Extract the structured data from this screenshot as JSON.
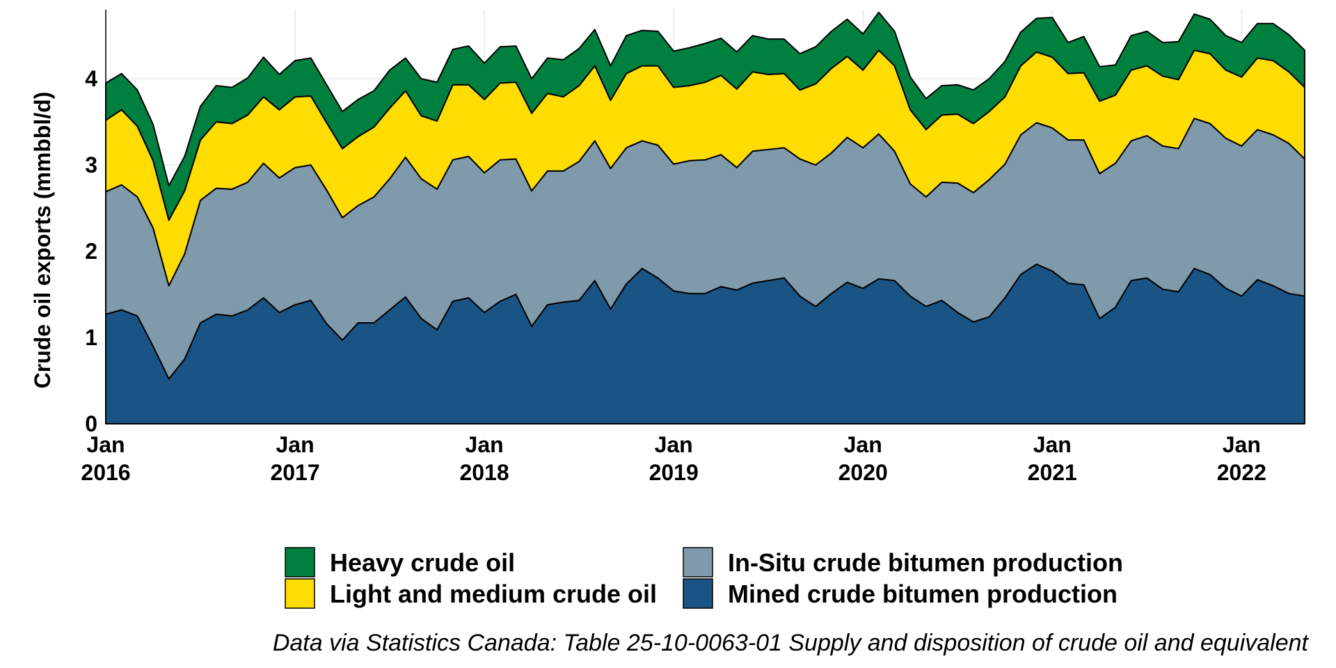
{
  "chart_data": {
    "type": "area",
    "stacked": true,
    "ylabel": "Crude oil exports (mmbbl/d)",
    "xlabel": "",
    "y_ticks": [
      0,
      1,
      2,
      3,
      4
    ],
    "ylim": [
      0,
      4.8
    ],
    "x_start": "2016-01",
    "x_end": "2022-05",
    "x_ticks": [
      {
        "month": "Jan",
        "year": "2016"
      },
      {
        "month": "Jan",
        "year": "2017"
      },
      {
        "month": "Jan",
        "year": "2018"
      },
      {
        "month": "Jan",
        "year": "2019"
      },
      {
        "month": "Jan",
        "year": "2020"
      },
      {
        "month": "Jan",
        "year": "2021"
      },
      {
        "month": "Jan",
        "year": "2022"
      }
    ],
    "legend_position": "bottom",
    "caption": "Data via Statistics Canada: Table 25-10-0063-01  Supply and disposition of crude oil and equivalent",
    "series": [
      {
        "name": "Mined crude bitumen production",
        "color": "#1a5485",
        "values": [
          1.27,
          1.32,
          1.25,
          0.9,
          0.52,
          0.75,
          1.17,
          1.27,
          1.25,
          1.32,
          1.46,
          1.29,
          1.38,
          1.43,
          1.16,
          0.97,
          1.17,
          1.17,
          1.32,
          1.47,
          1.22,
          1.09,
          1.42,
          1.46,
          1.29,
          1.42,
          1.5,
          1.13,
          1.38,
          1.41,
          1.43,
          1.66,
          1.33,
          1.62,
          1.8,
          1.69,
          1.54,
          1.51,
          1.51,
          1.59,
          1.55,
          1.63,
          1.66,
          1.69,
          1.48,
          1.36,
          1.51,
          1.64,
          1.57,
          1.68,
          1.66,
          1.48,
          1.36,
          1.43,
          1.29,
          1.18,
          1.24,
          1.46,
          1.73,
          1.85,
          1.77,
          1.63,
          1.61,
          1.22,
          1.35,
          1.66,
          1.69,
          1.56,
          1.53,
          1.8,
          1.73,
          1.57,
          1.48,
          1.67,
          1.6,
          1.51,
          1.48
        ]
      },
      {
        "name": "In-Situ crude bitumen production",
        "color": "#7f9aab",
        "values": [
          1.42,
          1.45,
          1.38,
          1.37,
          1.08,
          1.22,
          1.42,
          1.46,
          1.47,
          1.48,
          1.56,
          1.56,
          1.59,
          1.57,
          1.55,
          1.42,
          1.36,
          1.46,
          1.52,
          1.62,
          1.62,
          1.63,
          1.64,
          1.64,
          1.62,
          1.64,
          1.57,
          1.57,
          1.55,
          1.52,
          1.61,
          1.62,
          1.63,
          1.58,
          1.48,
          1.54,
          1.47,
          1.54,
          1.55,
          1.53,
          1.42,
          1.53,
          1.52,
          1.51,
          1.59,
          1.64,
          1.63,
          1.68,
          1.63,
          1.68,
          1.5,
          1.3,
          1.27,
          1.37,
          1.5,
          1.5,
          1.59,
          1.55,
          1.62,
          1.64,
          1.66,
          1.66,
          1.68,
          1.68,
          1.67,
          1.62,
          1.65,
          1.66,
          1.66,
          1.74,
          1.75,
          1.74,
          1.74,
          1.74,
          1.75,
          1.74,
          1.59
        ]
      },
      {
        "name": "Light and medium crude oil",
        "color": "#ffdd00",
        "values": [
          0.83,
          0.87,
          0.82,
          0.78,
          0.76,
          0.73,
          0.7,
          0.77,
          0.76,
          0.78,
          0.77,
          0.79,
          0.82,
          0.8,
          0.78,
          0.8,
          0.8,
          0.81,
          0.82,
          0.77,
          0.73,
          0.79,
          0.87,
          0.83,
          0.85,
          0.89,
          0.89,
          0.9,
          0.9,
          0.86,
          0.88,
          0.87,
          0.79,
          0.86,
          0.87,
          0.92,
          0.89,
          0.87,
          0.9,
          0.92,
          0.91,
          0.92,
          0.87,
          0.86,
          0.8,
          0.94,
          0.98,
          0.94,
          0.9,
          0.97,
          0.99,
          0.86,
          0.78,
          0.78,
          0.8,
          0.8,
          0.79,
          0.78,
          0.8,
          0.82,
          0.82,
          0.77,
          0.78,
          0.84,
          0.79,
          0.82,
          0.81,
          0.81,
          0.8,
          0.79,
          0.81,
          0.79,
          0.8,
          0.83,
          0.86,
          0.83,
          0.83
        ]
      },
      {
        "name": "Heavy crude oil",
        "color": "#00803e",
        "values": [
          0.43,
          0.42,
          0.42,
          0.42,
          0.4,
          0.4,
          0.39,
          0.42,
          0.42,
          0.43,
          0.46,
          0.41,
          0.42,
          0.44,
          0.44,
          0.43,
          0.43,
          0.42,
          0.44,
          0.38,
          0.43,
          0.45,
          0.41,
          0.45,
          0.42,
          0.42,
          0.42,
          0.4,
          0.41,
          0.43,
          0.43,
          0.42,
          0.4,
          0.44,
          0.41,
          0.4,
          0.42,
          0.44,
          0.45,
          0.43,
          0.43,
          0.42,
          0.41,
          0.4,
          0.42,
          0.43,
          0.43,
          0.43,
          0.42,
          0.44,
          0.4,
          0.38,
          0.36,
          0.34,
          0.34,
          0.39,
          0.38,
          0.41,
          0.39,
          0.39,
          0.46,
          0.36,
          0.42,
          0.4,
          0.35,
          0.4,
          0.4,
          0.39,
          0.44,
          0.42,
          0.4,
          0.4,
          0.4,
          0.4,
          0.43,
          0.43,
          0.43
        ]
      }
    ]
  },
  "legend": {
    "items": [
      {
        "name": "Heavy crude oil",
        "color": "#00803e"
      },
      {
        "name": "In-Situ crude bitumen production",
        "color": "#7f9aab"
      },
      {
        "name": "Light and medium crude oil",
        "color": "#ffdd00"
      },
      {
        "name": "Mined crude bitumen production",
        "color": "#1a5485"
      }
    ]
  }
}
